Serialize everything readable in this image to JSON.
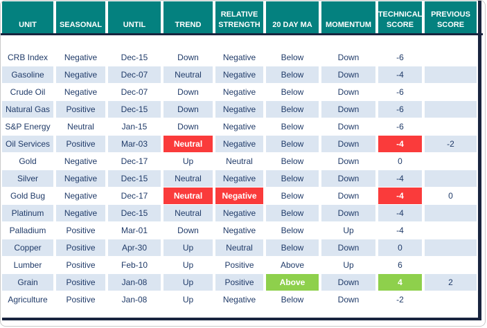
{
  "colors": {
    "header_bg": "#04817f",
    "header_text": "#ffffff",
    "text": "#1f3a68",
    "row_even": "#ffffff",
    "row_odd": "#dbe5f1",
    "red": "#fa3b3b",
    "green": "#8ed04c",
    "dark_border": "#18243e",
    "frame_border": "#c9c9c9"
  },
  "table": {
    "columns": [
      {
        "key": "unit",
        "label": "UNIT"
      },
      {
        "key": "seasonal",
        "label": "SEASONAL"
      },
      {
        "key": "until",
        "label": "UNTIL"
      },
      {
        "key": "trend",
        "label": "TREND"
      },
      {
        "key": "relative_strength",
        "label": "RELATIVE STRENGTH"
      },
      {
        "key": "ma20",
        "label": "20 DAY MA"
      },
      {
        "key": "momentum",
        "label": "MOMENTUM"
      },
      {
        "key": "technical_score",
        "label": "TECHNICAL SCORE"
      },
      {
        "key": "previous_score",
        "label": "PREVIOUS SCORE"
      }
    ],
    "rows": [
      {
        "cells": {
          "unit": "CRB Index",
          "seasonal": "Negative",
          "until": "Dec-15",
          "trend": "Down",
          "relative_strength": "Negative",
          "ma20": "Below",
          "momentum": "Down",
          "technical_score": "-6",
          "previous_score": ""
        },
        "highlights": {}
      },
      {
        "cells": {
          "unit": "Gasoline",
          "seasonal": "Negative",
          "until": "Dec-07",
          "trend": "Neutral",
          "relative_strength": "Negative",
          "ma20": "Below",
          "momentum": "Down",
          "technical_score": "-4",
          "previous_score": ""
        },
        "highlights": {}
      },
      {
        "cells": {
          "unit": "Crude Oil",
          "seasonal": "Negative",
          "until": "Dec-07",
          "trend": "Down",
          "relative_strength": "Negative",
          "ma20": "Below",
          "momentum": "Down",
          "technical_score": "-6",
          "previous_score": ""
        },
        "highlights": {}
      },
      {
        "cells": {
          "unit": "Natural Gas",
          "seasonal": "Positive",
          "until": "Dec-15",
          "trend": "Down",
          "relative_strength": "Negative",
          "ma20": "Below",
          "momentum": "Down",
          "technical_score": "-6",
          "previous_score": ""
        },
        "highlights": {}
      },
      {
        "cells": {
          "unit": "S&P Energy",
          "seasonal": "Neutral",
          "until": "Jan-15",
          "trend": "Down",
          "relative_strength": "Negative",
          "ma20": "Below",
          "momentum": "Down",
          "technical_score": "-6",
          "previous_score": ""
        },
        "highlights": {}
      },
      {
        "cells": {
          "unit": "Oil Services",
          "seasonal": "Positive",
          "until": "Mar-03",
          "trend": "Neutral",
          "relative_strength": "Negative",
          "ma20": "Below",
          "momentum": "Down",
          "technical_score": "-4",
          "previous_score": "-2"
        },
        "highlights": {
          "trend": "red",
          "technical_score": "red"
        }
      },
      {
        "cells": {
          "unit": "Gold",
          "seasonal": "Negative",
          "until": "Dec-17",
          "trend": "Up",
          "relative_strength": "Neutral",
          "ma20": "Below",
          "momentum": "Down",
          "technical_score": "0",
          "previous_score": ""
        },
        "highlights": {}
      },
      {
        "cells": {
          "unit": "Silver",
          "seasonal": "Negative",
          "until": "Dec-15",
          "trend": "Neutral",
          "relative_strength": "Negative",
          "ma20": "Below",
          "momentum": "Down",
          "technical_score": "-4",
          "previous_score": ""
        },
        "highlights": {}
      },
      {
        "cells": {
          "unit": "Gold Bug",
          "seasonal": "Negative",
          "until": "Dec-17",
          "trend": "Neutral",
          "relative_strength": "Negative",
          "ma20": "Below",
          "momentum": "Down",
          "technical_score": "-4",
          "previous_score": "0"
        },
        "highlights": {
          "trend": "red",
          "relative_strength": "red",
          "technical_score": "red"
        }
      },
      {
        "cells": {
          "unit": "Platinum",
          "seasonal": "Negative",
          "until": "Dec-15",
          "trend": "Neutral",
          "relative_strength": "Negative",
          "ma20": "Below",
          "momentum": "Down",
          "technical_score": "-4",
          "previous_score": ""
        },
        "highlights": {}
      },
      {
        "cells": {
          "unit": "Palladium",
          "seasonal": "Positive",
          "until": "Mar-01",
          "trend": "Down",
          "relative_strength": "Negative",
          "ma20": "Below",
          "momentum": "Up",
          "technical_score": "-4",
          "previous_score": ""
        },
        "highlights": {}
      },
      {
        "cells": {
          "unit": "Copper",
          "seasonal": "Positive",
          "until": "Apr-30",
          "trend": "Up",
          "relative_strength": "Neutral",
          "ma20": "Below",
          "momentum": "Down",
          "technical_score": "0",
          "previous_score": ""
        },
        "highlights": {}
      },
      {
        "cells": {
          "unit": "Lumber",
          "seasonal": "Positive",
          "until": "Feb-10",
          "trend": "Up",
          "relative_strength": "Positive",
          "ma20": "Above",
          "momentum": "Up",
          "technical_score": "6",
          "previous_score": ""
        },
        "highlights": {}
      },
      {
        "cells": {
          "unit": "Grain",
          "seasonal": "Positive",
          "until": "Jan-08",
          "trend": "Up",
          "relative_strength": "Positive",
          "ma20": "Above",
          "momentum": "Down",
          "technical_score": "4",
          "previous_score": "2"
        },
        "highlights": {
          "ma20": "green",
          "technical_score": "green"
        }
      },
      {
        "cells": {
          "unit": "Agriculture",
          "seasonal": "Positive",
          "until": "Jan-08",
          "trend": "Up",
          "relative_strength": "Negative",
          "ma20": "Below",
          "momentum": "Down",
          "technical_score": "-2",
          "previous_score": ""
        },
        "highlights": {}
      }
    ]
  }
}
